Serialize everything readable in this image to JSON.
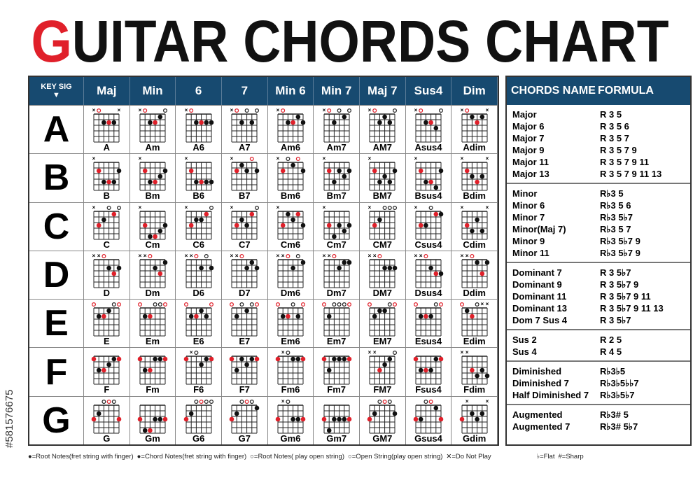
{
  "title": {
    "first_letter": "G",
    "rest": "UITAR CHORDS CHART",
    "accent": "#e0202a"
  },
  "header": {
    "key_sig": "KEY SIG",
    "columns": [
      "Maj",
      "Min",
      "6",
      "7",
      "Min 6",
      "Min 7",
      "Maj 7",
      "Sus4",
      "Dim"
    ],
    "color": "#174a70"
  },
  "rows": [
    {
      "key": "A",
      "root": 9,
      "chords": [
        [
          "A",
          "x0222x"
        ],
        [
          "Am",
          "x02210"
        ],
        [
          "A6",
          "x02222"
        ],
        [
          "A7",
          "x02020"
        ],
        [
          "Am6",
          "x02212"
        ],
        [
          "Am7",
          "x02010"
        ],
        [
          "AM7",
          "x02120"
        ],
        [
          "Asus4",
          "x02230"
        ],
        [
          "Adim",
          "x0121x"
        ]
      ]
    },
    {
      "key": "B",
      "root": 11,
      "chords": [
        [
          "B",
          "x24442"
        ],
        [
          "Bm",
          "x24432"
        ],
        [
          "B6",
          "x24444"
        ],
        [
          "B7",
          "x21202"
        ],
        [
          "Bm6",
          "x20102"
        ],
        [
          "Bm7",
          "x24232"
        ],
        [
          "BM7",
          "x24342"
        ],
        [
          "Bsus4",
          "x24452"
        ],
        [
          "Bdim",
          "x2343x"
        ]
      ]
    },
    {
      "key": "C",
      "root": 0,
      "chords": [
        [
          "C",
          "x32010"
        ],
        [
          "Cm",
          "x35543"
        ],
        [
          "C6",
          "x32210"
        ],
        [
          "C7",
          "x32310"
        ],
        [
          "Cm6",
          "x31213"
        ],
        [
          "Cm7",
          "x35343"
        ],
        [
          "CM7",
          "x32000"
        ],
        [
          "Csus4",
          "x33011"
        ],
        [
          "Cdim",
          "x3424x"
        ]
      ]
    },
    {
      "key": "D",
      "root": 2,
      "chords": [
        [
          "D",
          "xx0232"
        ],
        [
          "Dm",
          "xx0231"
        ],
        [
          "D6",
          "xx0202"
        ],
        [
          "D7",
          "xx0212"
        ],
        [
          "Dm6",
          "xx0201"
        ],
        [
          "Dm7",
          "xx0211"
        ],
        [
          "DM7",
          "xx0222"
        ],
        [
          "Dsus4",
          "xx0233"
        ],
        [
          "Ddim",
          "xx0131"
        ]
      ]
    },
    {
      "key": "E",
      "root": 4,
      "chords": [
        [
          "E",
          "022100"
        ],
        [
          "Em",
          "022000"
        ],
        [
          "E6",
          "022120"
        ],
        [
          "E7",
          "020100"
        ],
        [
          "Em6",
          "022020"
        ],
        [
          "Em7",
          "020000"
        ],
        [
          "EM7",
          "021100"
        ],
        [
          "Esus4",
          "022200"
        ],
        [
          "Edim",
          "0120xx"
        ]
      ]
    },
    {
      "key": "F",
      "root": 5,
      "chords": [
        [
          "F",
          "133211"
        ],
        [
          "Fm",
          "133111"
        ],
        [
          "F6",
          "1x0211"
        ],
        [
          "F7",
          "131211"
        ],
        [
          "Fm6",
          "1x0111"
        ],
        [
          "Fm7",
          "131111"
        ],
        [
          "FM7",
          "xx3210"
        ],
        [
          "Fsus4",
          "133311"
        ],
        [
          "Fdim",
          "xx3434"
        ]
      ]
    },
    {
      "key": "G",
      "root": 7,
      "chords": [
        [
          "G",
          "320003"
        ],
        [
          "Gm",
          "355333"
        ],
        [
          "G6",
          "320000"
        ],
        [
          "G7",
          "320001"
        ],
        [
          "Gm6",
          "3x0333"
        ],
        [
          "Gm7",
          "353333"
        ],
        [
          "GM7",
          "320002"
        ],
        [
          "Gsus4",
          "330013"
        ],
        [
          "Gdim",
          "3x232x"
        ]
      ]
    }
  ],
  "formula": {
    "header": [
      "CHORDS NAME",
      "FORMULA"
    ],
    "groups": [
      [
        [
          "Major",
          "R 3 5"
        ],
        [
          "Major 6",
          "R 3 5 6"
        ],
        [
          "Major 7",
          "R 3 5 7"
        ],
        [
          "Major 9",
          "R 3 5 7 9"
        ],
        [
          "Major 11",
          "R 3 5 7 9 11"
        ],
        [
          "Major 13",
          "R 3 5 7 9 11 13"
        ]
      ],
      [
        [
          "Minor",
          "R♭3 5"
        ],
        [
          "Minor 6",
          "R♭3 5 6"
        ],
        [
          "Minor 7",
          "R♭3 5♭7"
        ],
        [
          "Minor(Maj 7)",
          "R♭3 5 7"
        ],
        [
          "Minor 9",
          "R♭3 5♭7 9"
        ],
        [
          "Minor 11",
          "R♭3 5♭7 9"
        ]
      ],
      [
        [
          "Dominant 7",
          "R 3 5♭7"
        ],
        [
          "Dominant 9",
          "R 3 5♭7 9"
        ],
        [
          "Dominant 11",
          "R 3 5♭7 9 11"
        ],
        [
          "Dominant 13",
          "R 3 5♭7 9 11 13"
        ],
        [
          "Dom 7 Sus 4",
          "R 3 5♭7"
        ]
      ],
      [
        [
          "Sus 2",
          "R 2 5"
        ],
        [
          "Sus 4",
          "R 4 5"
        ]
      ],
      [
        [
          "Diminished",
          "R♭3♭5"
        ],
        [
          "Diminished 7",
          "R♭3♭5♭♭7"
        ],
        [
          "Half Diminished 7",
          "R♭3♭5♭7"
        ]
      ],
      [
        [
          "Augmented",
          "R♭3# 5"
        ],
        [
          "Augmented 7",
          "R♭3# 5♭7"
        ]
      ]
    ]
  },
  "legend": [
    "●=Root Notes(fret string with finger)",
    "●=Chord Notes(fret string with finger)",
    "○=Root Notes( play open string)",
    "○=Open String(play open string)",
    "✕=Do Not Play",
    "♭=Flat",
    "#=Sharp"
  ],
  "watermark_id": "#581576675"
}
